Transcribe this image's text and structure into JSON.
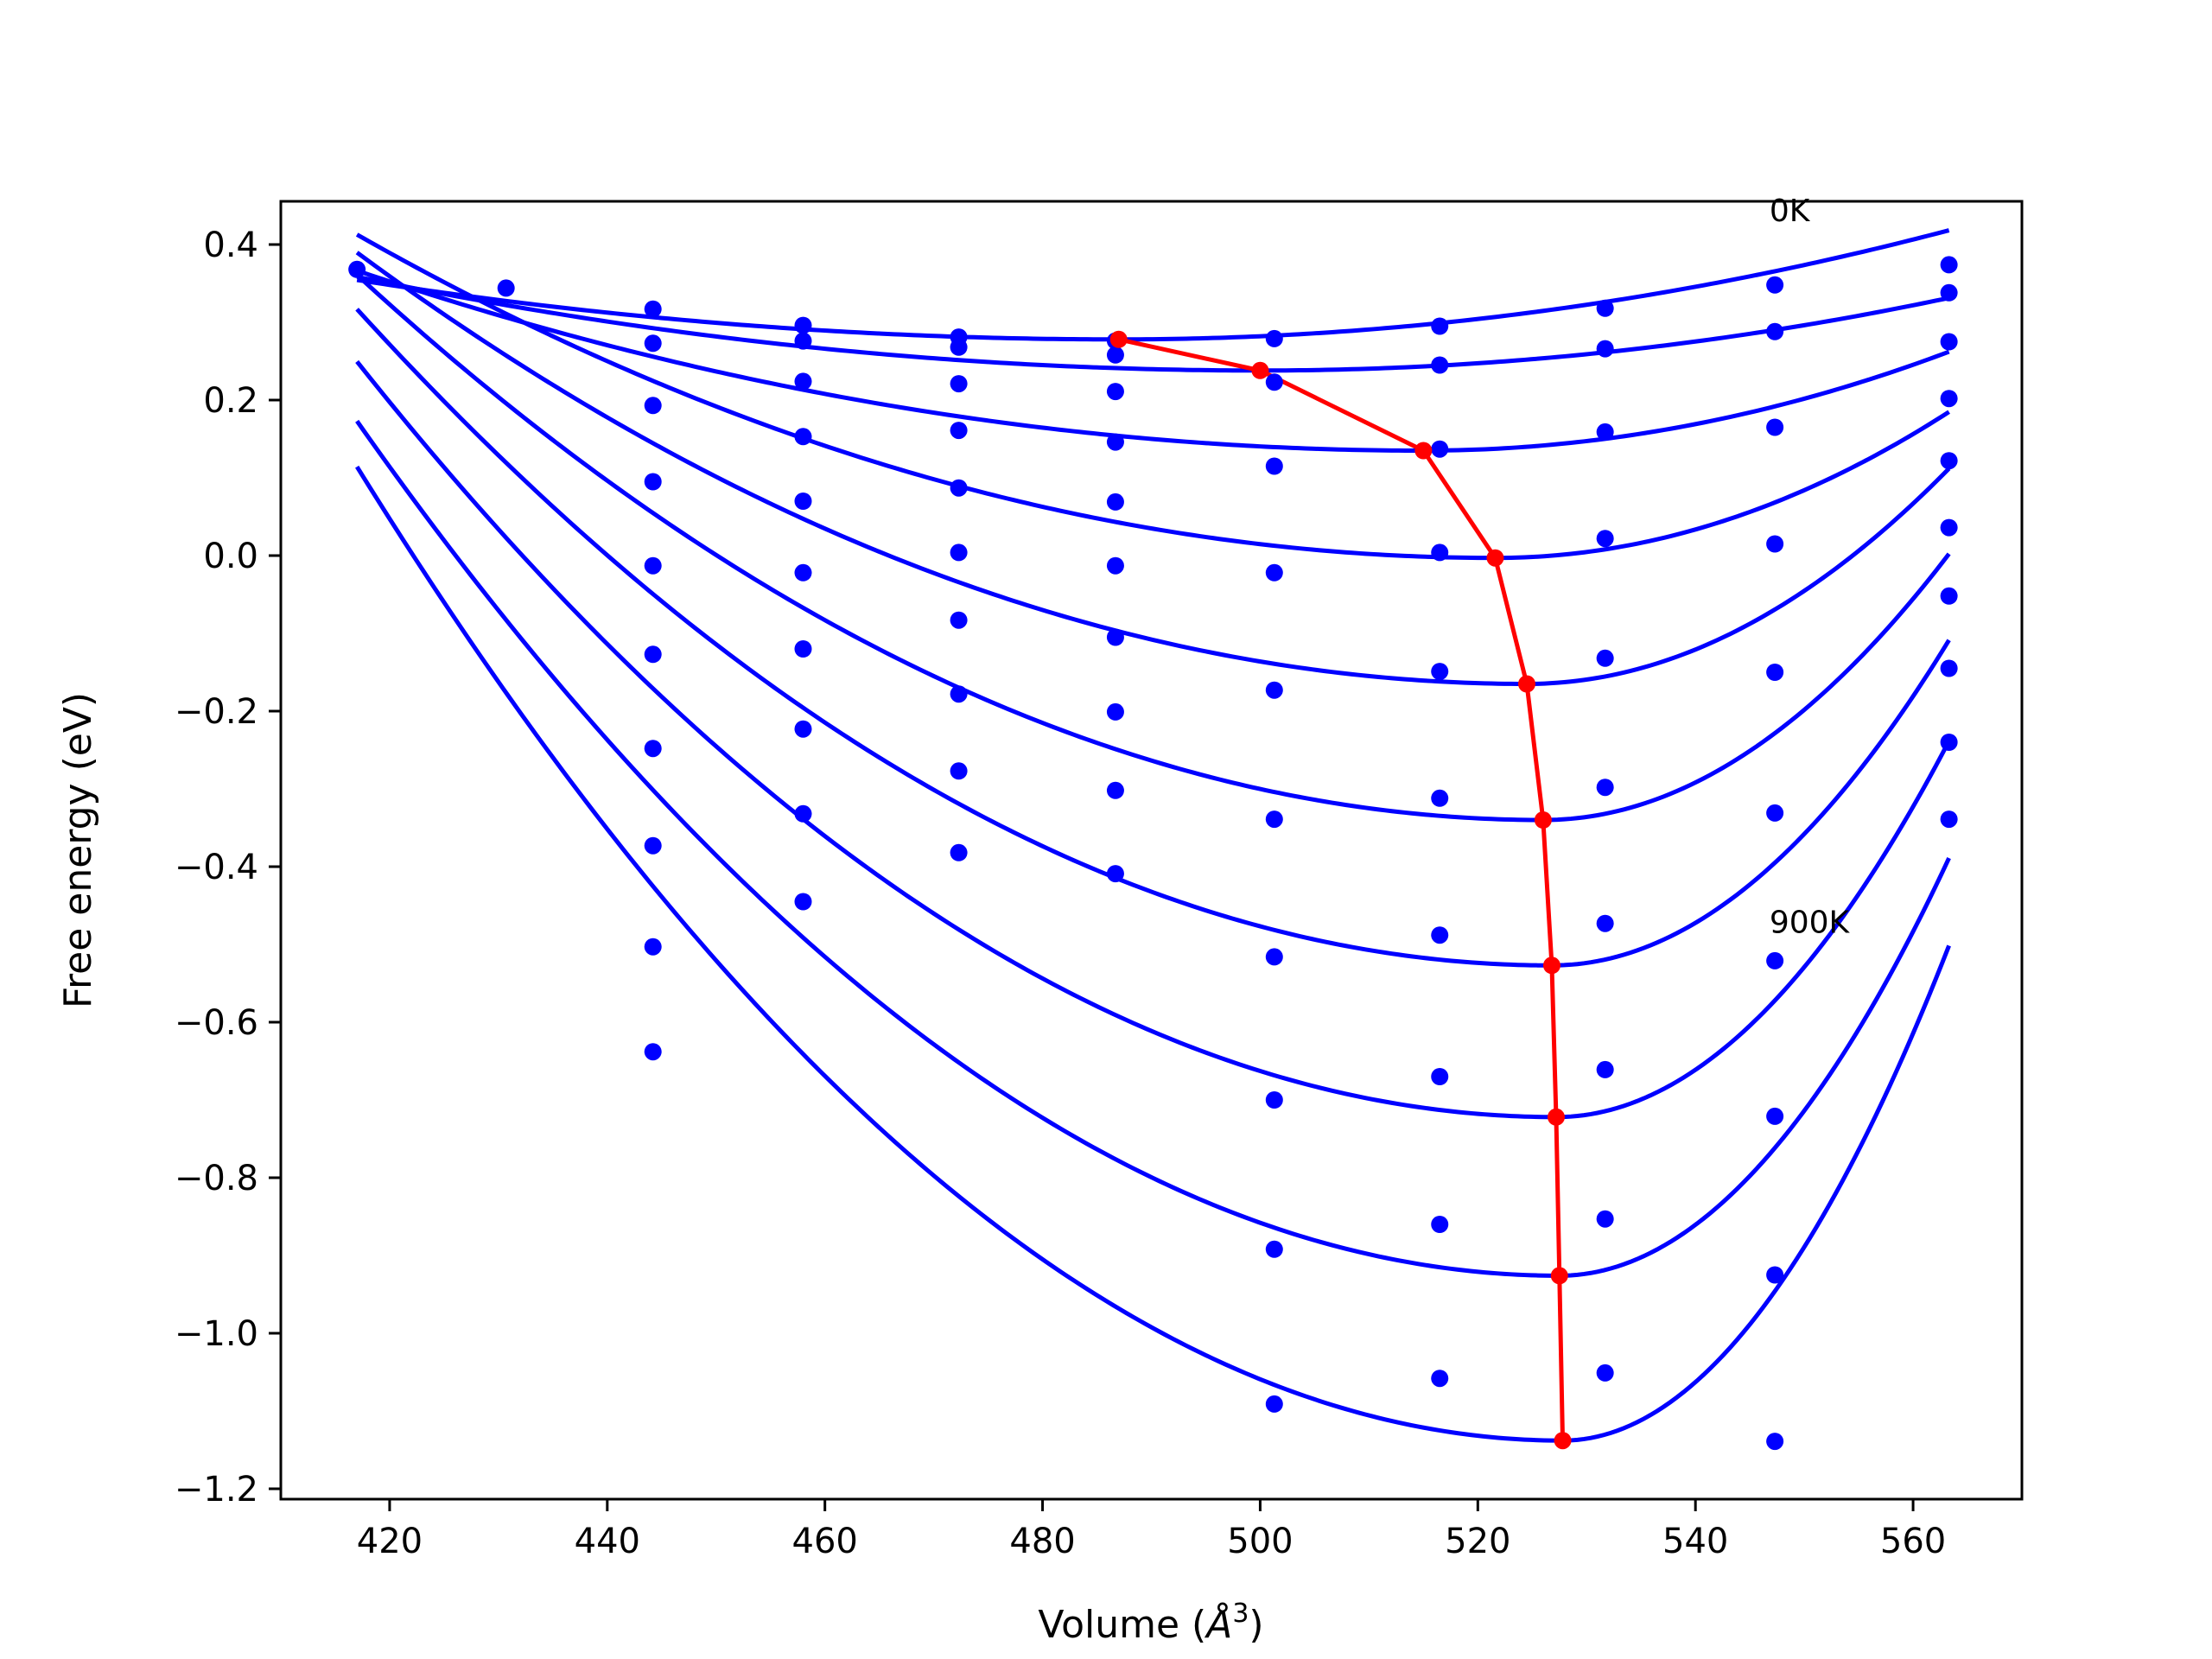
{
  "chart_data": {
    "type": "line",
    "xlabel": "Volume (",
    "xlabel_unit_base": "Å",
    "xlabel_unit_exp": "3",
    "xlabel_close": ")",
    "ylabel": "Free energy (eV)",
    "xlim": [
      410,
      570
    ],
    "ylim": [
      -1.22,
      0.45
    ],
    "xticks": [
      420,
      440,
      460,
      480,
      500,
      520,
      540,
      560
    ],
    "yticks": [
      0.4,
      0.2,
      0.0,
      -0.2,
      -0.4,
      -0.6,
      -0.8,
      -1.0,
      -1.2
    ],
    "ytick_labels": [
      "0.4",
      "0.2",
      "0.0",
      "−0.2",
      "−0.4",
      "−0.6",
      "−0.8",
      "−1.0",
      "−1.2"
    ],
    "annotations": [
      {
        "text": "0K",
        "x": 546.8,
        "y": 0.43
      },
      {
        "text": "900K",
        "x": 546.8,
        "y": -0.485
      }
    ],
    "grid": false,
    "colors": {
      "fit": "#0000ff",
      "points": "#0000ff",
      "minima": "#ff0000"
    },
    "fit_curves": [
      {
        "x_start": 417.0,
        "x_end": 563.3,
        "v0": 487,
        "e_min": 0.278,
        "a_left": 1.56e-05,
        "a_right": 2.41e-05
      },
      {
        "x_start": 417.0,
        "x_end": 563.3,
        "v0": 500,
        "e_min": 0.238,
        "a_left": 1.75e-05,
        "a_right": 2.33e-05
      },
      {
        "x_start": 417.0,
        "x_end": 563.3,
        "v0": 515,
        "e_min": 0.135,
        "a_left": 2.41e-05,
        "a_right": 5.45e-05
      },
      {
        "x_start": 417.0,
        "x_end": 563.3,
        "v0": 521.6,
        "e_min": -0.003,
        "a_left": 3.8e-05,
        "a_right": 0.000108
      },
      {
        "x_start": 417.0,
        "x_end": 563.3,
        "v0": 524.5,
        "e_min": -0.165,
        "a_left": 4.8e-05,
        "a_right": 0.000184
      },
      {
        "x_start": 417.0,
        "x_end": 563.3,
        "v0": 526,
        "e_min": -0.34,
        "a_left": 5.9e-05,
        "a_right": 0.000246
      },
      {
        "x_start": 417.0,
        "x_end": 563.3,
        "v0": 526.8,
        "e_min": -0.527,
        "a_left": 7e-05,
        "a_right": 0.000314
      },
      {
        "x_start": 417.0,
        "x_end": 563.3,
        "v0": 527.2,
        "e_min": -0.722,
        "a_left": 8e-05,
        "a_right": 0.000371
      },
      {
        "x_start": 417.0,
        "x_end": 563.3,
        "v0": 527.5,
        "e_min": -0.926,
        "a_left": 9e-05,
        "a_right": 0.000419
      },
      {
        "x_start": 417.0,
        "x_end": 563.3,
        "v0": 527.8,
        "e_min": -1.138,
        "a_left": 0.000102,
        "a_right": 0.000505
      }
    ],
    "points": [
      [
        417.0,
        0.368
      ],
      [
        430.7,
        0.344
      ],
      [
        444.2,
        0.317
      ],
      [
        444.2,
        0.273
      ],
      [
        444.2,
        0.193
      ],
      [
        444.2,
        0.095
      ],
      [
        444.2,
        -0.013
      ],
      [
        444.2,
        -0.127
      ],
      [
        444.2,
        -0.248
      ],
      [
        444.2,
        -0.373
      ],
      [
        444.2,
        -0.503
      ],
      [
        444.2,
        -0.638
      ],
      [
        458.0,
        0.296
      ],
      [
        458.0,
        0.276
      ],
      [
        458.0,
        0.224
      ],
      [
        458.0,
        0.153
      ],
      [
        458.0,
        0.07
      ],
      [
        458.0,
        -0.022
      ],
      [
        458.0,
        -0.12
      ],
      [
        458.0,
        -0.223
      ],
      [
        458.0,
        -0.332
      ],
      [
        458.0,
        -0.445
      ],
      [
        472.3,
        0.281
      ],
      [
        472.3,
        0.268
      ],
      [
        472.3,
        0.221
      ],
      [
        472.3,
        0.161
      ],
      [
        472.3,
        0.087
      ],
      [
        472.3,
        0.004
      ],
      [
        472.3,
        -0.083
      ],
      [
        472.3,
        -0.178
      ],
      [
        472.3,
        -0.277
      ],
      [
        472.3,
        -0.382
      ],
      [
        486.7,
        0.276
      ],
      [
        486.7,
        0.258
      ],
      [
        486.7,
        0.211
      ],
      [
        486.7,
        0.146
      ],
      [
        486.7,
        0.069
      ],
      [
        486.7,
        -0.013
      ],
      [
        486.7,
        -0.105
      ],
      [
        486.7,
        -0.201
      ],
      [
        486.7,
        -0.302
      ],
      [
        486.7,
        -0.409
      ],
      [
        501.3,
        0.279
      ],
      [
        501.3,
        0.223
      ],
      [
        501.3,
        0.115
      ],
      [
        501.3,
        -0.022
      ],
      [
        501.3,
        -0.173
      ],
      [
        501.3,
        -0.339
      ],
      [
        501.3,
        -0.516
      ],
      [
        501.3,
        -0.7
      ],
      [
        501.3,
        -0.892
      ],
      [
        501.3,
        -1.091
      ],
      [
        516.5,
        0.295
      ],
      [
        516.5,
        0.245
      ],
      [
        516.5,
        0.137
      ],
      [
        516.5,
        0.004
      ],
      [
        516.5,
        -0.149
      ],
      [
        516.5,
        -0.312
      ],
      [
        516.5,
        -0.488
      ],
      [
        516.5,
        -0.67
      ],
      [
        516.5,
        -0.86
      ],
      [
        516.5,
        -1.058
      ],
      [
        531.7,
        0.318
      ],
      [
        531.7,
        0.266
      ],
      [
        531.7,
        0.159
      ],
      [
        531.7,
        0.022
      ],
      [
        531.7,
        -0.132
      ],
      [
        531.7,
        -0.298
      ],
      [
        531.7,
        -0.473
      ],
      [
        531.7,
        -0.661
      ],
      [
        531.7,
        -0.853
      ],
      [
        531.7,
        -1.051
      ],
      [
        547.3,
        0.348
      ],
      [
        547.3,
        0.288
      ],
      [
        547.3,
        0.165
      ],
      [
        547.3,
        0.015
      ],
      [
        547.3,
        -0.15
      ],
      [
        547.3,
        -0.331
      ],
      [
        547.3,
        -0.521
      ],
      [
        547.3,
        -0.721
      ],
      [
        547.3,
        -0.925
      ],
      [
        547.3,
        -1.139
      ],
      [
        563.3,
        0.374
      ],
      [
        563.3,
        0.338
      ],
      [
        563.3,
        0.275
      ],
      [
        563.3,
        0.202
      ],
      [
        563.3,
        0.122
      ],
      [
        563.3,
        0.036
      ],
      [
        563.3,
        -0.052
      ],
      [
        563.3,
        -0.145
      ],
      [
        563.3,
        -0.24
      ],
      [
        563.3,
        -0.339
      ]
    ],
    "minima": [
      [
        487.0,
        0.278
      ],
      [
        500.0,
        0.238
      ],
      [
        515.0,
        0.135
      ],
      [
        521.6,
        -0.003
      ],
      [
        524.5,
        -0.165
      ],
      [
        526.0,
        -0.34
      ],
      [
        526.8,
        -0.527
      ],
      [
        527.2,
        -0.722
      ],
      [
        527.5,
        -0.926
      ],
      [
        527.8,
        -1.138
      ]
    ]
  }
}
